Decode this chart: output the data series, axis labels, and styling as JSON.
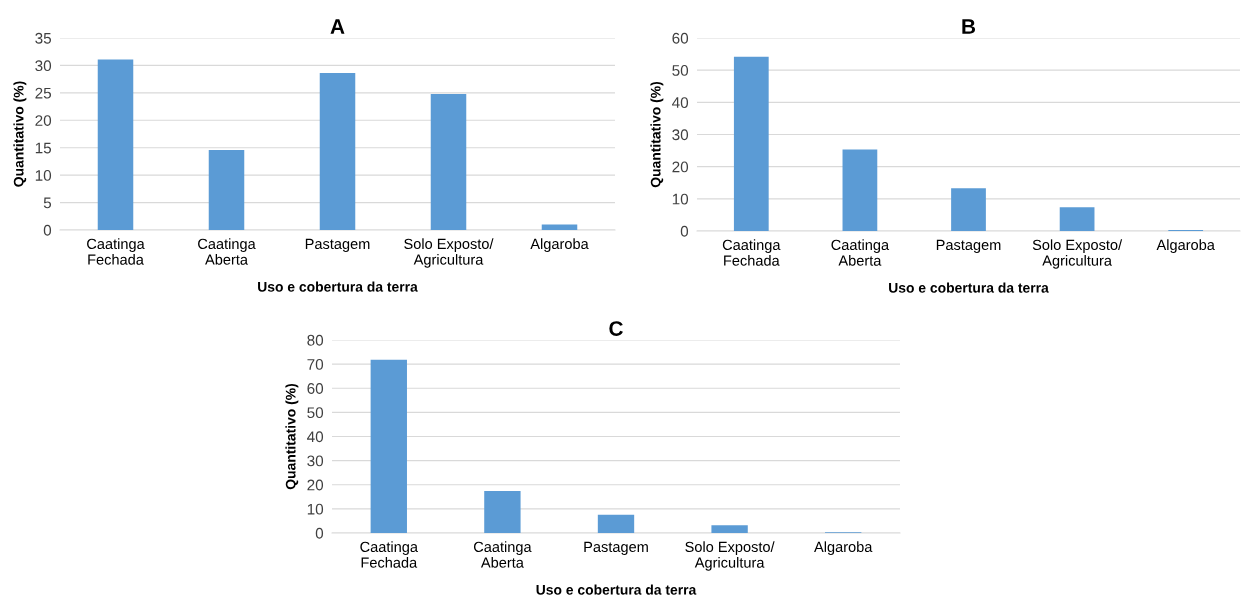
{
  "chart_data": [
    {
      "type": "bar",
      "title": "A",
      "xlabel": "Uso e cobertura da terra",
      "ylabel": "Quantitativo (%)",
      "categories": [
        "Caatinga\nFechada",
        "Caatinga\nAberta",
        "Pastagem",
        "Solo Exposto/\nAgricultura",
        "Algaroba"
      ],
      "values": [
        31.1,
        14.6,
        28.6,
        24.8,
        1.0
      ],
      "color": "#5b9bd5",
      "ylim": [
        0,
        35
      ],
      "yticks": [
        0,
        5,
        10,
        15,
        20,
        25,
        30,
        35
      ],
      "grid": "y"
    },
    {
      "type": "bar",
      "title": "B",
      "xlabel": "Uso e cobertura da terra",
      "ylabel": "Quantitativo (%)",
      "categories": [
        "Caatinga\nFechada",
        "Caatinga\nAberta",
        "Pastagem",
        "Solo Exposto/\nAgricultura",
        "Algaroba"
      ],
      "values": [
        54.2,
        25.3,
        13.3,
        7.4,
        0.3
      ],
      "color": "#5b9bd5",
      "ylim": [
        0,
        60
      ],
      "yticks": [
        0,
        10,
        20,
        30,
        40,
        50,
        60
      ],
      "grid": "y"
    },
    {
      "type": "bar",
      "title": "C",
      "xlabel": "Uso e cobertura da terra",
      "ylabel": "Quantitativo (%)",
      "categories": [
        "Caatinga\nFechada",
        "Caatinga\nAberta",
        "Pastagem",
        "Solo Exposto/\nAgricultura",
        "Algaroba"
      ],
      "values": [
        71.8,
        17.4,
        7.6,
        3.2,
        0.3
      ],
      "color": "#5b9bd5",
      "ylim": [
        0,
        80
      ],
      "yticks": [
        0,
        10,
        20,
        30,
        40,
        50,
        60,
        70,
        80
      ],
      "grid": "y"
    }
  ]
}
